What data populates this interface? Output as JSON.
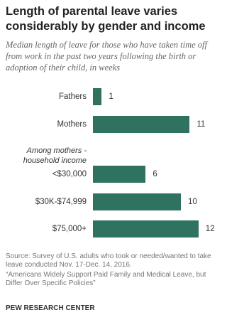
{
  "chart_data": {
    "type": "bar",
    "orientation": "horizontal",
    "title": "Length of parental leave varies considerably by gender and income",
    "subtitle": "Median length of leave for those who have taken time off from work in the past two years following the birth or adoption of their child, in weeks",
    "group_label": "Among mothers - household income",
    "categories": [
      "Fathers",
      "Mothers",
      "<$30,000",
      "$30K-$74,999",
      "$75,000+"
    ],
    "values": [
      1,
      11,
      6,
      10,
      12
    ],
    "color": "#2f7260",
    "notes": [
      "Source: Survey of U.S. adults who took or needed/wanted to take leave conducted Nov. 17-Dec. 14, 2016.",
      "“Americans Widely Support Paid Family and Medical Leave, but Differ Over Specific Policies”"
    ],
    "footer": "PEW RESEARCH CENTER"
  }
}
